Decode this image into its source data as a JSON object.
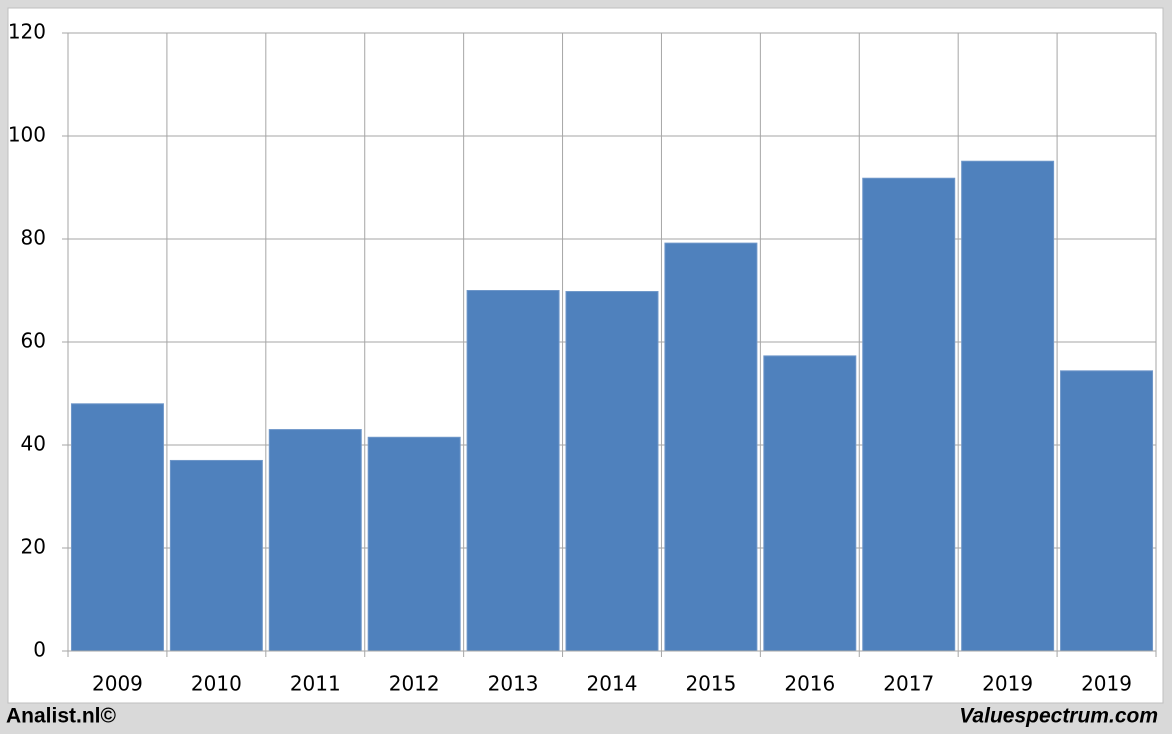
{
  "chart_data": {
    "type": "bar",
    "categories": [
      "2009",
      "2010",
      "2011",
      "2012",
      "2013",
      "2014",
      "2015",
      "2016",
      "2017",
      "2019",
      "2019"
    ],
    "values": [
      48,
      37,
      43,
      41.5,
      70,
      69.8,
      79.2,
      57.3,
      91.8,
      95.1,
      54.4
    ],
    "color": "#4f81bd",
    "ylim": [
      0,
      120
    ],
    "yticks": [
      0,
      20,
      40,
      60,
      80,
      100,
      120
    ],
    "grid": true,
    "footer_left": "Analist.nl©",
    "footer_right": "Valuespectrum.com"
  }
}
